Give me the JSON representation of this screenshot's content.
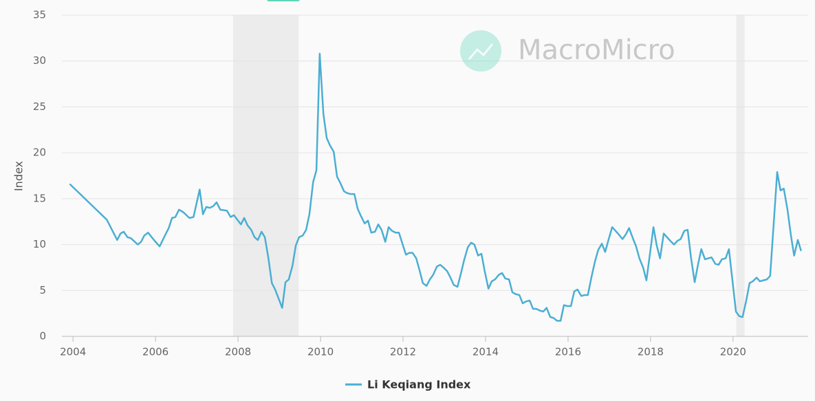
{
  "chart_data": {
    "type": "line",
    "watermark": "MacroMicro",
    "y_label": "Index",
    "legend": "bottom",
    "grid": true,
    "xlim": [
      2003.73,
      2021.82
    ],
    "xticks": [
      2004,
      2006,
      2008,
      2010,
      2012,
      2014,
      2016,
      2018,
      2020
    ],
    "ylim": [
      0,
      35
    ],
    "yticks": [
      0,
      5,
      10,
      15,
      20,
      25,
      30,
      35
    ],
    "shaded_periods": [
      [
        2007.88,
        2009.47
      ],
      [
        2020.08,
        2020.28
      ]
    ],
    "x": [
      2003.92,
      2004.82,
      2005.07,
      2005.15,
      2005.23,
      2005.32,
      2005.4,
      2005.57,
      2005.65,
      2005.73,
      2005.82,
      2005.98,
      2006.1,
      2006.23,
      2006.32,
      2006.4,
      2006.48,
      2006.57,
      2006.68,
      2006.82,
      2006.92,
      2007.07,
      2007.15,
      2007.23,
      2007.32,
      2007.4,
      2007.48,
      2007.57,
      2007.73,
      2007.82,
      2007.9,
      2008.07,
      2008.15,
      2008.23,
      2008.32,
      2008.4,
      2008.48,
      2008.57,
      2008.65,
      2008.73,
      2008.82,
      2008.9,
      2009.07,
      2009.15,
      2009.23,
      2009.32,
      2009.4,
      2009.48,
      2009.57,
      2009.65,
      2009.73,
      2009.82,
      2009.9,
      2009.98,
      2010.07,
      2010.15,
      2010.23,
      2010.32,
      2010.4,
      2010.48,
      2010.57,
      2010.65,
      2010.73,
      2010.82,
      2010.9,
      2010.98,
      2011.07,
      2011.15,
      2011.23,
      2011.32,
      2011.4,
      2011.48,
      2011.57,
      2011.65,
      2011.73,
      2011.82,
      2011.9,
      2012.07,
      2012.15,
      2012.23,
      2012.32,
      2012.4,
      2012.48,
      2012.57,
      2012.65,
      2012.73,
      2012.82,
      2012.9,
      2012.98,
      2013.07,
      2013.15,
      2013.23,
      2013.32,
      2013.4,
      2013.48,
      2013.57,
      2013.65,
      2013.73,
      2013.82,
      2013.9,
      2013.98,
      2014.07,
      2014.15,
      2014.23,
      2014.32,
      2014.4,
      2014.48,
      2014.57,
      2014.65,
      2014.73,
      2014.82,
      2014.9,
      2014.98,
      2015.07,
      2015.15,
      2015.23,
      2015.32,
      2015.4,
      2015.48,
      2015.57,
      2015.65,
      2015.73,
      2015.82,
      2015.9,
      2015.98,
      2016.07,
      2016.15,
      2016.23,
      2016.32,
      2016.4,
      2016.48,
      2016.57,
      2016.65,
      2016.73,
      2016.82,
      2016.9,
      2016.98,
      2017.07,
      2017.15,
      2017.23,
      2017.32,
      2017.4,
      2017.48,
      2017.57,
      2017.65,
      2017.73,
      2017.82,
      2017.9,
      2017.98,
      2018.07,
      2018.15,
      2018.23,
      2018.32,
      2018.4,
      2018.48,
      2018.57,
      2018.65,
      2018.73,
      2018.82,
      2018.9,
      2018.98,
      2019.07,
      2019.15,
      2019.23,
      2019.32,
      2019.4,
      2019.48,
      2019.57,
      2019.65,
      2019.73,
      2019.82,
      2019.9,
      2020.07,
      2020.15,
      2020.23,
      2020.32,
      2020.4,
      2020.48,
      2020.57,
      2020.65,
      2020.73,
      2020.82,
      2020.9,
      2021.07,
      2021.15,
      2021.23,
      2021.32,
      2021.4,
      2021.48,
      2021.57,
      2021.65
    ],
    "series": [
      {
        "name": "Li Keqiang Index",
        "color": "#4aaed3",
        "values": [
          16.6,
          12.7,
          10.5,
          11.2,
          11.4,
          10.8,
          10.7,
          10.0,
          10.3,
          11.0,
          11.3,
          10.4,
          9.8,
          11.0,
          11.8,
          12.9,
          13.0,
          13.8,
          13.5,
          12.9,
          13.0,
          16.0,
          13.3,
          14.1,
          14.0,
          14.2,
          14.6,
          13.8,
          13.7,
          13.0,
          13.2,
          12.2,
          12.9,
          12.1,
          11.6,
          10.8,
          10.5,
          11.4,
          10.8,
          8.7,
          5.8,
          5.1,
          3.1,
          5.9,
          6.2,
          7.7,
          9.9,
          10.8,
          11.0,
          11.6,
          13.3,
          16.8,
          18.1,
          30.8,
          24.2,
          21.6,
          20.8,
          20.1,
          17.4,
          16.7,
          15.8,
          15.6,
          15.5,
          15.5,
          13.9,
          13.1,
          12.3,
          12.6,
          11.3,
          11.4,
          12.2,
          11.6,
          10.3,
          11.9,
          11.5,
          11.3,
          11.3,
          8.9,
          9.1,
          9.1,
          8.5,
          7.2,
          5.8,
          5.5,
          6.2,
          6.7,
          7.6,
          7.8,
          7.5,
          7.1,
          6.4,
          5.6,
          5.4,
          6.8,
          8.3,
          9.7,
          10.2,
          10.0,
          8.8,
          9.0,
          7.1,
          5.2,
          6.0,
          6.2,
          6.7,
          6.9,
          6.3,
          6.2,
          4.8,
          4.6,
          4.5,
          3.6,
          3.8,
          3.9,
          3.0,
          3.0,
          2.8,
          2.7,
          3.1,
          2.1,
          2.0,
          1.7,
          1.7,
          3.4,
          3.3,
          3.3,
          4.9,
          5.1,
          4.4,
          4.5,
          4.5,
          6.5,
          8.1,
          9.4,
          10.1,
          9.2,
          10.5,
          11.9,
          11.5,
          11.1,
          10.6,
          11.1,
          11.8,
          10.7,
          9.8,
          8.5,
          7.5,
          6.1,
          8.8,
          11.9,
          9.9,
          8.5,
          11.2,
          10.8,
          10.4,
          10.0,
          10.4,
          10.6,
          11.5,
          11.6,
          8.6,
          5.9,
          7.8,
          9.5,
          8.4,
          8.5,
          8.6,
          7.9,
          7.8,
          8.4,
          8.5,
          9.5,
          2.7,
          2.2,
          2.1,
          3.9,
          5.8,
          6.0,
          6.4,
          6.0,
          6.1,
          6.2,
          6.6,
          17.9,
          15.9,
          16.1,
          13.8,
          11.1,
          8.8,
          10.5,
          9.3
        ]
      }
    ]
  }
}
